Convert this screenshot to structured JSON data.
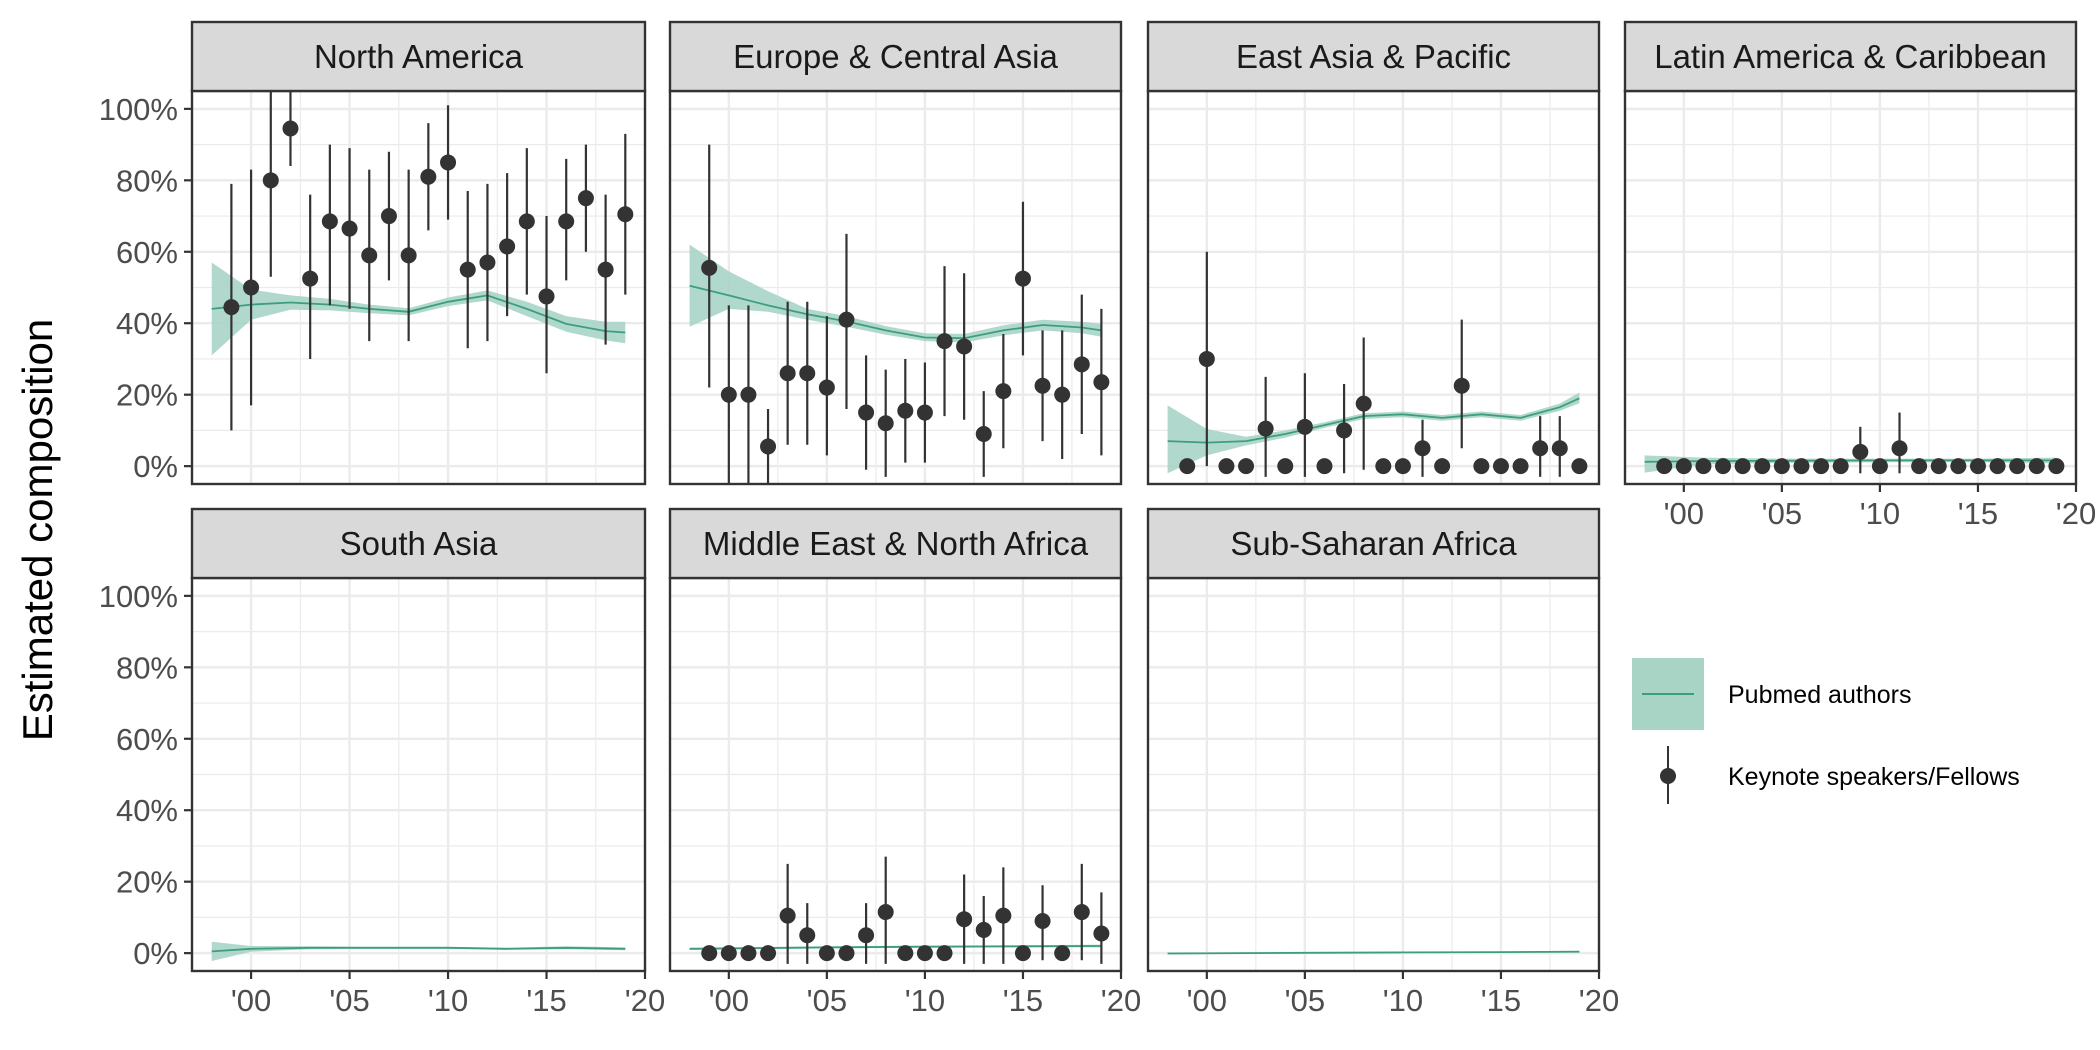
{
  "figure": {
    "ylabel": "Estimated composition",
    "y_ticks": [
      "0%",
      "20%",
      "40%",
      "60%",
      "80%",
      "100%"
    ],
    "x_ticks": [
      "'00",
      "'05",
      "'10",
      "'15",
      "'20"
    ],
    "legend": {
      "band_label": "Pubmed authors",
      "point_label": "Keynote speakers/Fellows"
    },
    "colors": {
      "band_fill": "#a8d4c6",
      "line": "#3d9e7f",
      "point": "#333333",
      "grid": "#ebebeb",
      "strip_bg": "#d9d9d9"
    }
  },
  "chart_data": [
    {
      "type": "scatter",
      "title": "North America",
      "x_range": [
        1997,
        2020
      ],
      "y_range": [
        -0.05,
        1.05
      ],
      "points": [
        {
          "x": 1999,
          "y": 0.445,
          "lo": 0.1,
          "hi": 0.79
        },
        {
          "x": 2000,
          "y": 0.5,
          "lo": 0.17,
          "hi": 0.83
        },
        {
          "x": 2001,
          "y": 0.8,
          "lo": 0.53,
          "hi": 1.05
        },
        {
          "x": 2002,
          "y": 0.945,
          "lo": 0.84,
          "hi": 1.05
        },
        {
          "x": 2003,
          "y": 0.525,
          "lo": 0.3,
          "hi": 0.76
        },
        {
          "x": 2004,
          "y": 0.685,
          "lo": 0.45,
          "hi": 0.9
        },
        {
          "x": 2005,
          "y": 0.665,
          "lo": 0.44,
          "hi": 0.89
        },
        {
          "x": 2006,
          "y": 0.59,
          "lo": 0.35,
          "hi": 0.83
        },
        {
          "x": 2007,
          "y": 0.7,
          "lo": 0.52,
          "hi": 0.88
        },
        {
          "x": 2008,
          "y": 0.59,
          "lo": 0.35,
          "hi": 0.83
        },
        {
          "x": 2009,
          "y": 0.81,
          "lo": 0.66,
          "hi": 0.96
        },
        {
          "x": 2010,
          "y": 0.85,
          "lo": 0.69,
          "hi": 1.01
        },
        {
          "x": 2011,
          "y": 0.55,
          "lo": 0.33,
          "hi": 0.77
        },
        {
          "x": 2012,
          "y": 0.57,
          "lo": 0.35,
          "hi": 0.79
        },
        {
          "x": 2013,
          "y": 0.615,
          "lo": 0.42,
          "hi": 0.82
        },
        {
          "x": 2014,
          "y": 0.685,
          "lo": 0.48,
          "hi": 0.89
        },
        {
          "x": 2015,
          "y": 0.475,
          "lo": 0.26,
          "hi": 0.7
        },
        {
          "x": 2016,
          "y": 0.685,
          "lo": 0.52,
          "hi": 0.86
        },
        {
          "x": 2017,
          "y": 0.75,
          "lo": 0.6,
          "hi": 0.9
        },
        {
          "x": 2018,
          "y": 0.55,
          "lo": 0.34,
          "hi": 0.76
        },
        {
          "x": 2019,
          "y": 0.705,
          "lo": 0.48,
          "hi": 0.93
        }
      ],
      "band": {
        "x": [
          1998,
          2000,
          2002,
          2004,
          2006,
          2008,
          2010,
          2012,
          2014,
          2016,
          2018,
          2019
        ],
        "y": [
          0.44,
          0.452,
          0.458,
          0.452,
          0.44,
          0.432,
          0.46,
          0.478,
          0.44,
          0.398,
          0.378,
          0.374
        ],
        "lo": [
          0.31,
          0.41,
          0.438,
          0.436,
          0.428,
          0.422,
          0.448,
          0.464,
          0.42,
          0.376,
          0.352,
          0.344
        ],
        "hi": [
          0.57,
          0.494,
          0.478,
          0.468,
          0.452,
          0.442,
          0.472,
          0.492,
          0.46,
          0.42,
          0.404,
          0.404
        ]
      }
    },
    {
      "type": "scatter",
      "title": "Europe & Central Asia",
      "x_range": [
        1997,
        2020
      ],
      "y_range": [
        -0.05,
        1.05
      ],
      "points": [
        {
          "x": 1999,
          "y": 0.555,
          "lo": 0.22,
          "hi": 0.9
        },
        {
          "x": 2000,
          "y": 0.2,
          "lo": -0.05,
          "hi": 0.45
        },
        {
          "x": 2001,
          "y": 0.2,
          "lo": -0.05,
          "hi": 0.45
        },
        {
          "x": 2002,
          "y": 0.055,
          "lo": -0.05,
          "hi": 0.16
        },
        {
          "x": 2003,
          "y": 0.26,
          "lo": 0.06,
          "hi": 0.46
        },
        {
          "x": 2004,
          "y": 0.26,
          "lo": 0.06,
          "hi": 0.46
        },
        {
          "x": 2005,
          "y": 0.22,
          "lo": 0.03,
          "hi": 0.42
        },
        {
          "x": 2006,
          "y": 0.41,
          "lo": 0.16,
          "hi": 0.65
        },
        {
          "x": 2007,
          "y": 0.15,
          "lo": -0.01,
          "hi": 0.31
        },
        {
          "x": 2008,
          "y": 0.12,
          "lo": -0.03,
          "hi": 0.27
        },
        {
          "x": 2009,
          "y": 0.155,
          "lo": 0.01,
          "hi": 0.3
        },
        {
          "x": 2010,
          "y": 0.15,
          "lo": 0.01,
          "hi": 0.29
        },
        {
          "x": 2011,
          "y": 0.35,
          "lo": 0.14,
          "hi": 0.56
        },
        {
          "x": 2012,
          "y": 0.335,
          "lo": 0.13,
          "hi": 0.54
        },
        {
          "x": 2013,
          "y": 0.09,
          "lo": -0.03,
          "hi": 0.21
        },
        {
          "x": 2014,
          "y": 0.21,
          "lo": 0.05,
          "hi": 0.37
        },
        {
          "x": 2015,
          "y": 0.525,
          "lo": 0.31,
          "hi": 0.74
        },
        {
          "x": 2016,
          "y": 0.225,
          "lo": 0.07,
          "hi": 0.38
        },
        {
          "x": 2017,
          "y": 0.2,
          "lo": 0.02,
          "hi": 0.38
        },
        {
          "x": 2018,
          "y": 0.285,
          "lo": 0.09,
          "hi": 0.48
        },
        {
          "x": 2019,
          "y": 0.235,
          "lo": 0.03,
          "hi": 0.44
        }
      ],
      "band": {
        "x": [
          1998,
          2000,
          2002,
          2004,
          2006,
          2008,
          2010,
          2012,
          2014,
          2016,
          2018,
          2019
        ],
        "y": [
          0.505,
          0.478,
          0.45,
          0.425,
          0.405,
          0.38,
          0.36,
          0.358,
          0.38,
          0.395,
          0.388,
          0.38
        ],
        "lo": [
          0.39,
          0.44,
          0.432,
          0.41,
          0.39,
          0.368,
          0.35,
          0.346,
          0.366,
          0.38,
          0.372,
          0.362
        ],
        "hi": [
          0.62,
          0.545,
          0.49,
          0.44,
          0.42,
          0.392,
          0.372,
          0.37,
          0.394,
          0.41,
          0.404,
          0.398
        ]
      }
    },
    {
      "type": "scatter",
      "title": "East Asia & Pacific",
      "x_range": [
        1997,
        2020
      ],
      "y_range": [
        -0.05,
        1.05
      ],
      "points": [
        {
          "x": 1999,
          "y": 0.0,
          "lo": null,
          "hi": null
        },
        {
          "x": 2000,
          "y": 0.3,
          "lo": 0.0,
          "hi": 0.6
        },
        {
          "x": 2001,
          "y": 0.0,
          "lo": null,
          "hi": null
        },
        {
          "x": 2002,
          "y": 0.0,
          "lo": null,
          "hi": null
        },
        {
          "x": 2003,
          "y": 0.105,
          "lo": -0.03,
          "hi": 0.25
        },
        {
          "x": 2004,
          "y": 0.0,
          "lo": null,
          "hi": null
        },
        {
          "x": 2005,
          "y": 0.11,
          "lo": -0.03,
          "hi": 0.26
        },
        {
          "x": 2006,
          "y": 0.0,
          "lo": null,
          "hi": null
        },
        {
          "x": 2007,
          "y": 0.1,
          "lo": -0.02,
          "hi": 0.23
        },
        {
          "x": 2008,
          "y": 0.175,
          "lo": -0.01,
          "hi": 0.36
        },
        {
          "x": 2009,
          "y": 0.0,
          "lo": null,
          "hi": null
        },
        {
          "x": 2010,
          "y": 0.0,
          "lo": null,
          "hi": null
        },
        {
          "x": 2011,
          "y": 0.05,
          "lo": -0.03,
          "hi": 0.13
        },
        {
          "x": 2012,
          "y": 0.0,
          "lo": null,
          "hi": null
        },
        {
          "x": 2013,
          "y": 0.225,
          "lo": 0.05,
          "hi": 0.41
        },
        {
          "x": 2014,
          "y": 0.0,
          "lo": null,
          "hi": null
        },
        {
          "x": 2015,
          "y": 0.0,
          "lo": null,
          "hi": null
        },
        {
          "x": 2016,
          "y": 0.0,
          "lo": null,
          "hi": null
        },
        {
          "x": 2017,
          "y": 0.05,
          "lo": -0.03,
          "hi": 0.14
        },
        {
          "x": 2018,
          "y": 0.05,
          "lo": -0.03,
          "hi": 0.14
        },
        {
          "x": 2019,
          "y": 0.0,
          "lo": null,
          "hi": null
        }
      ],
      "band": {
        "x": [
          1998,
          2000,
          2002,
          2004,
          2006,
          2008,
          2010,
          2012,
          2014,
          2016,
          2018,
          2019
        ],
        "y": [
          0.07,
          0.066,
          0.07,
          0.09,
          0.115,
          0.14,
          0.145,
          0.135,
          0.145,
          0.135,
          0.165,
          0.19
        ],
        "lo": [
          -0.02,
          0.03,
          0.058,
          0.08,
          0.107,
          0.132,
          0.137,
          0.127,
          0.137,
          0.127,
          0.155,
          0.176
        ],
        "hi": [
          0.17,
          0.104,
          0.082,
          0.1,
          0.123,
          0.148,
          0.153,
          0.143,
          0.153,
          0.143,
          0.175,
          0.206
        ]
      }
    },
    {
      "type": "scatter",
      "title": "Latin America & Caribbean",
      "x_range": [
        1997,
        2020
      ],
      "y_range": [
        -0.05,
        1.05
      ],
      "points": [
        {
          "x": 1999,
          "y": 0.0,
          "lo": null,
          "hi": null
        },
        {
          "x": 2000,
          "y": 0.0,
          "lo": null,
          "hi": null
        },
        {
          "x": 2001,
          "y": 0.0,
          "lo": null,
          "hi": null
        },
        {
          "x": 2002,
          "y": 0.0,
          "lo": null,
          "hi": null
        },
        {
          "x": 2003,
          "y": 0.0,
          "lo": null,
          "hi": null
        },
        {
          "x": 2004,
          "y": 0.0,
          "lo": null,
          "hi": null
        },
        {
          "x": 2005,
          "y": 0.0,
          "lo": null,
          "hi": null
        },
        {
          "x": 2006,
          "y": 0.0,
          "lo": null,
          "hi": null
        },
        {
          "x": 2007,
          "y": 0.0,
          "lo": null,
          "hi": null
        },
        {
          "x": 2008,
          "y": 0.0,
          "lo": null,
          "hi": null
        },
        {
          "x": 2009,
          "y": 0.04,
          "lo": -0.02,
          "hi": 0.11
        },
        {
          "x": 2010,
          "y": 0.0,
          "lo": null,
          "hi": null
        },
        {
          "x": 2011,
          "y": 0.05,
          "lo": -0.02,
          "hi": 0.15
        },
        {
          "x": 2012,
          "y": 0.0,
          "lo": null,
          "hi": null
        },
        {
          "x": 2013,
          "y": 0.0,
          "lo": null,
          "hi": null
        },
        {
          "x": 2014,
          "y": 0.0,
          "lo": null,
          "hi": null
        },
        {
          "x": 2015,
          "y": 0.0,
          "lo": null,
          "hi": null
        },
        {
          "x": 2016,
          "y": 0.0,
          "lo": null,
          "hi": null
        },
        {
          "x": 2017,
          "y": 0.0,
          "lo": null,
          "hi": null
        },
        {
          "x": 2018,
          "y": 0.0,
          "lo": null,
          "hi": null
        },
        {
          "x": 2019,
          "y": 0.0,
          "lo": null,
          "hi": null
        }
      ],
      "band": {
        "x": [
          1998,
          2001,
          2005,
          2010,
          2015,
          2019
        ],
        "y": [
          0.012,
          0.014,
          0.015,
          0.016,
          0.016,
          0.016
        ],
        "lo": [
          -0.018,
          0.005,
          0.009,
          0.011,
          0.011,
          0.008
        ],
        "hi": [
          0.03,
          0.024,
          0.021,
          0.021,
          0.021,
          0.024
        ]
      }
    },
    {
      "type": "scatter",
      "title": "South Asia",
      "x_range": [
        1997,
        2020
      ],
      "y_range": [
        -0.05,
        1.05
      ],
      "points": [],
      "band": {
        "x": [
          1998,
          2000,
          2003,
          2006,
          2010,
          2013,
          2016,
          2019
        ],
        "y": [
          0.005,
          0.012,
          0.015,
          0.015,
          0.015,
          0.012,
          0.015,
          0.012
        ],
        "lo": [
          -0.022,
          0.004,
          0.011,
          0.012,
          0.012,
          0.009,
          0.011,
          0.008
        ],
        "hi": [
          0.032,
          0.02,
          0.019,
          0.018,
          0.018,
          0.015,
          0.019,
          0.016
        ]
      }
    },
    {
      "type": "scatter",
      "title": "Middle East & North Africa",
      "x_range": [
        1997,
        2020
      ],
      "y_range": [
        -0.05,
        1.05
      ],
      "points": [
        {
          "x": 1999,
          "y": 0.0,
          "lo": null,
          "hi": null
        },
        {
          "x": 2000,
          "y": 0.0,
          "lo": null,
          "hi": null
        },
        {
          "x": 2001,
          "y": 0.0,
          "lo": null,
          "hi": null
        },
        {
          "x": 2002,
          "y": 0.0,
          "lo": null,
          "hi": null
        },
        {
          "x": 2003,
          "y": 0.105,
          "lo": -0.03,
          "hi": 0.25
        },
        {
          "x": 2004,
          "y": 0.05,
          "lo": -0.03,
          "hi": 0.14
        },
        {
          "x": 2005,
          "y": 0.0,
          "lo": null,
          "hi": null
        },
        {
          "x": 2006,
          "y": 0.0,
          "lo": null,
          "hi": null
        },
        {
          "x": 2007,
          "y": 0.05,
          "lo": -0.03,
          "hi": 0.14
        },
        {
          "x": 2008,
          "y": 0.115,
          "lo": -0.03,
          "hi": 0.27
        },
        {
          "x": 2009,
          "y": 0.0,
          "lo": null,
          "hi": null
        },
        {
          "x": 2010,
          "y": 0.0,
          "lo": null,
          "hi": null
        },
        {
          "x": 2011,
          "y": 0.0,
          "lo": null,
          "hi": null
        },
        {
          "x": 2012,
          "y": 0.095,
          "lo": -0.03,
          "hi": 0.22
        },
        {
          "x": 2013,
          "y": 0.065,
          "lo": -0.03,
          "hi": 0.16
        },
        {
          "x": 2014,
          "y": 0.105,
          "lo": -0.03,
          "hi": 0.24
        },
        {
          "x": 2015,
          "y": 0.0,
          "lo": null,
          "hi": null
        },
        {
          "x": 2016,
          "y": 0.09,
          "lo": -0.02,
          "hi": 0.19
        },
        {
          "x": 2017,
          "y": 0.0,
          "lo": null,
          "hi": null
        },
        {
          "x": 2018,
          "y": 0.115,
          "lo": -0.02,
          "hi": 0.25
        },
        {
          "x": 2019,
          "y": 0.055,
          "lo": -0.03,
          "hi": 0.17
        }
      ],
      "band": {
        "x": [
          1998,
          2005,
          2010,
          2015,
          2019
        ],
        "y": [
          0.012,
          0.016,
          0.018,
          0.019,
          0.02
        ],
        "lo": [
          0.009,
          0.013,
          0.015,
          0.016,
          0.016
        ],
        "hi": [
          0.015,
          0.019,
          0.021,
          0.022,
          0.024
        ]
      }
    },
    {
      "type": "scatter",
      "title": "Sub-Saharan Africa",
      "x_range": [
        1997,
        2020
      ],
      "y_range": [
        -0.05,
        1.05
      ],
      "points": [],
      "band": {
        "x": [
          1998,
          2005,
          2010,
          2015,
          2019
        ],
        "y": [
          -0.001,
          0.001,
          0.002,
          0.003,
          0.004
        ],
        "lo": [
          -0.003,
          -0.001,
          0.0,
          0.001,
          0.002
        ],
        "hi": [
          0.001,
          0.003,
          0.004,
          0.005,
          0.006
        ]
      }
    }
  ]
}
